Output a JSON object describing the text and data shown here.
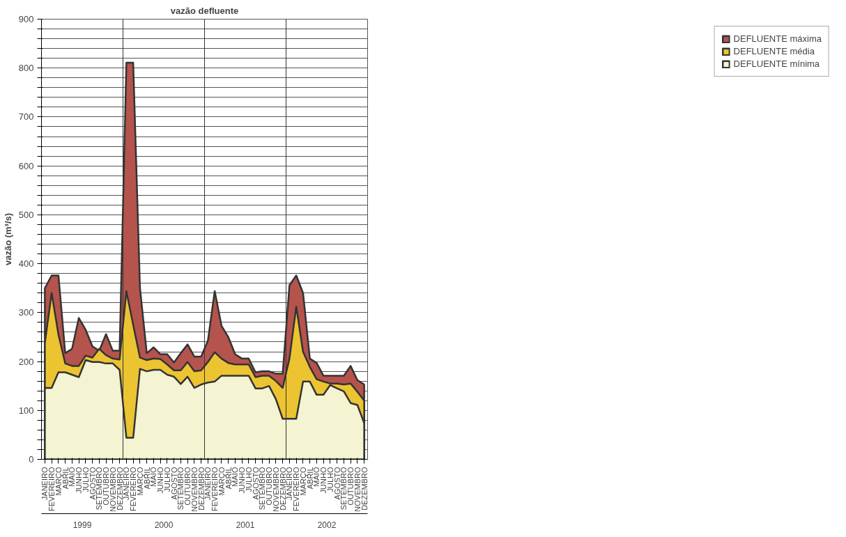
{
  "chart_data": {
    "type": "area",
    "title": "vazão defluente",
    "ylabel": "vazão (m³/s)",
    "categories": [
      "JANEIRO",
      "FEVEREIRO",
      "MARÇO",
      "ABRIL",
      "MAIO",
      "JUNHO",
      "JULHO",
      "AGOSTO",
      "SETEMBRO",
      "OUTUBRO",
      "NOVEMBRO",
      "DEZEMBRO",
      "JANEIRO",
      "FEVEREIRO",
      "MARÇO",
      "ABRIL",
      "MAIO",
      "JUNHO",
      "JULHO",
      "AGOSTO",
      "SETEMBRO",
      "OUTUBRO",
      "NOVEMBRO",
      "DEZEMBRO",
      "JANEIRO",
      "FEVEREIRO",
      "MARÇO",
      "ABRIL",
      "MAIO",
      "JUNHO",
      "JULHO",
      "AGOSTO",
      "SETEMBRO",
      "OUTUBRO",
      "NOVEMBRO",
      "DEZEMBRO",
      "JANEIRO",
      "FEVEREIRO",
      "MARÇO",
      "ABRIL",
      "MAIO",
      "JUNHO",
      "JULHO",
      "AGOSTO",
      "SETEMBRO",
      "OUTUBRO",
      "NOVEMBRO",
      "DEZEMBRO"
    ],
    "annotations": [
      "1999",
      "2000",
      "2001",
      "2002"
    ],
    "series": [
      {
        "name": "DEFLUENTE máxima",
        "color": "#b5534d",
        "values": [
          350,
          376,
          376,
          217,
          226,
          289,
          265,
          231,
          222,
          256,
          222,
          222,
          811,
          811,
          350,
          217,
          229,
          215,
          215,
          198,
          217,
          235,
          210,
          210,
          243,
          344,
          273,
          250,
          215,
          206,
          206,
          178,
          180,
          180,
          175,
          175,
          356,
          376,
          340,
          206,
          197,
          171,
          171,
          171,
          171,
          191,
          162,
          153
        ]
      },
      {
        "name": "DEFLUENTE média",
        "color": "#ecc431",
        "values": [
          238,
          340,
          255,
          196,
          191,
          191,
          212,
          208,
          226,
          213,
          206,
          204,
          344,
          275,
          208,
          203,
          206,
          205,
          194,
          182,
          182,
          199,
          180,
          182,
          199,
          219,
          206,
          197,
          194,
          194,
          194,
          168,
          171,
          171,
          160,
          146,
          206,
          312,
          220,
          189,
          164,
          159,
          155,
          155,
          153,
          155,
          138,
          120
        ]
      },
      {
        "name": "DEFLUENTE mínima",
        "color": "#f4f3d2",
        "values": [
          146,
          146,
          178,
          178,
          173,
          168,
          203,
          199,
          199,
          196,
          196,
          183,
          44,
          44,
          185,
          180,
          183,
          183,
          173,
          169,
          154,
          169,
          146,
          153,
          157,
          159,
          171,
          171,
          171,
          171,
          171,
          145,
          145,
          150,
          123,
          83,
          83,
          83,
          159,
          159,
          132,
          132,
          152,
          145,
          139,
          115,
          111,
          74
        ]
      }
    ],
    "ylim": [
      0,
      900
    ],
    "yticks": [
      0,
      {
        "value": 20,
        "label": null
      },
      {
        "value": 40,
        "label": null
      },
      {
        "value": 60,
        "label": null
      },
      {
        "value": 80,
        "label": null
      },
      100,
      {
        "value": 120,
        "label": null
      },
      {
        "value": 140,
        "label": null
      },
      {
        "value": 160,
        "label": null
      },
      {
        "value": 180,
        "label": null
      },
      200,
      {
        "value": 220,
        "label": null
      },
      {
        "value": 240,
        "label": null
      },
      {
        "value": 260,
        "label": null
      },
      {
        "value": 280,
        "label": null
      },
      300,
      {
        "value": 320,
        "label": null
      },
      {
        "value": 340,
        "label": null
      },
      {
        "value": 360,
        "label": null
      },
      {
        "value": 380,
        "label": null
      },
      400,
      {
        "value": 420,
        "label": null
      },
      {
        "value": 440,
        "label": null
      },
      {
        "value": 460,
        "label": null
      },
      {
        "value": 480,
        "label": null
      },
      500,
      {
        "value": 520,
        "label": null
      },
      {
        "value": 540,
        "label": null
      },
      {
        "value": 560,
        "label": null
      },
      {
        "value": 580,
        "label": null
      },
      600,
      {
        "value": 620,
        "label": null
      },
      {
        "value": 640,
        "label": null
      },
      {
        "value": 660,
        "label": null
      },
      {
        "value": 680,
        "label": null
      },
      700,
      {
        "value": 720,
        "label": null
      },
      {
        "value": 740,
        "label": null
      },
      {
        "value": 760,
        "label": null
      },
      {
        "value": 780,
        "label": null
      },
      800,
      {
        "value": 820,
        "label": null
      },
      {
        "value": 840,
        "label": null
      },
      {
        "value": 860,
        "label": null
      },
      {
        "value": 880,
        "label": null
      },
      900
    ],
    "grid": "y",
    "legend": "right"
  }
}
